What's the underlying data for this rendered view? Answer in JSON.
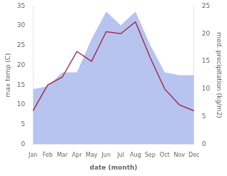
{
  "chart_data": {
    "type": "line",
    "xlabel": "date (month)",
    "ylabel": "max temp (C)",
    "y2label": "med. precipitation (kg/m2)",
    "categories": [
      "Jan",
      "Feb",
      "Mar",
      "Apr",
      "May",
      "Jun",
      "Jul",
      "Aug",
      "Sep",
      "Oct",
      "Nov",
      "Dec"
    ],
    "series": [
      {
        "type": "line",
        "color": "#a03050",
        "axis": "y",
        "values": [
          8.5,
          15.0,
          17.0,
          23.5,
          21.0,
          28.5,
          28.0,
          31.0,
          22.0,
          14.0,
          10.0,
          8.5
        ]
      },
      {
        "type": "area",
        "color": "#b8c4f0",
        "axis": "y2",
        "values": [
          10.0,
          10.5,
          13.0,
          13.0,
          19.0,
          24.0,
          21.5,
          24.0,
          18.0,
          13.0,
          12.5,
          12.5
        ]
      }
    ],
    "ylim": [
      0,
      35
    ],
    "yticks": [
      0,
      5,
      10,
      15,
      20,
      25,
      30,
      35
    ],
    "y2lim": [
      0,
      25
    ],
    "y2ticks": [
      0,
      5,
      10,
      15,
      20,
      25
    ],
    "grid": false
  }
}
